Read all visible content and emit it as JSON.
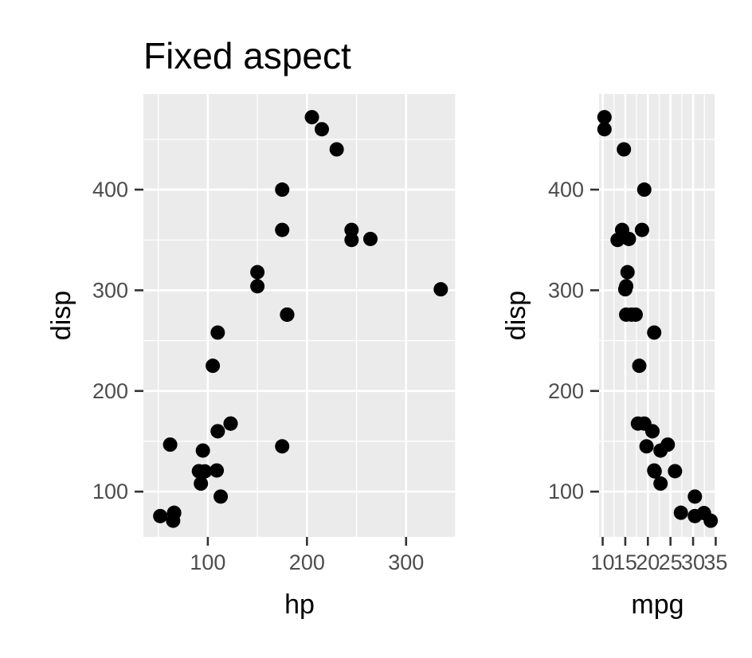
{
  "chart_data": [
    {
      "type": "scatter",
      "title": "Fixed aspect",
      "xlabel": "hp",
      "ylabel": "disp",
      "xlim": [
        35,
        350
      ],
      "ylim": [
        55,
        495
      ],
      "xticks": [
        100,
        200,
        300
      ],
      "yticks": [
        100,
        200,
        300,
        400
      ],
      "grid": true,
      "background": "#ebebeb",
      "point_color": "#000000",
      "series": [
        {
          "points": [
            [
              110,
              160
            ],
            [
              110,
              160
            ],
            [
              93,
              108
            ],
            [
              110,
              258
            ],
            [
              175,
              360
            ],
            [
              105,
              225
            ],
            [
              245,
              360
            ],
            [
              62,
              146.7
            ],
            [
              95,
              140.8
            ],
            [
              123,
              167.6
            ],
            [
              123,
              167.6
            ],
            [
              180,
              275.8
            ],
            [
              180,
              275.8
            ],
            [
              180,
              275.8
            ],
            [
              205,
              472
            ],
            [
              215,
              460
            ],
            [
              230,
              440
            ],
            [
              66,
              78.7
            ],
            [
              52,
              75.7
            ],
            [
              65,
              71.1
            ],
            [
              97,
              120.1
            ],
            [
              150,
              318
            ],
            [
              150,
              304
            ],
            [
              245,
              350
            ],
            [
              175,
              400
            ],
            [
              66,
              79
            ],
            [
              91,
              120.3
            ],
            [
              113,
              95.1
            ],
            [
              264,
              351
            ],
            [
              175,
              145
            ],
            [
              335,
              301
            ],
            [
              109,
              121
            ]
          ]
        }
      ]
    },
    {
      "type": "scatter",
      "title": "",
      "xlabel": "mpg",
      "ylabel": "disp",
      "xlim": [
        9.2,
        35.1
      ],
      "ylim": [
        55,
        495
      ],
      "xticks": [
        10,
        15,
        20,
        25,
        30,
        35
      ],
      "yticks": [
        100,
        200,
        300,
        400
      ],
      "grid": true,
      "background": "#ebebeb",
      "point_color": "#000000",
      "series": [
        {
          "points": [
            [
              21,
              160
            ],
            [
              21,
              160
            ],
            [
              22.8,
              108
            ],
            [
              21.4,
              258
            ],
            [
              18.7,
              360
            ],
            [
              18.1,
              225
            ],
            [
              14.3,
              360
            ],
            [
              24.4,
              146.7
            ],
            [
              22.8,
              140.8
            ],
            [
              19.2,
              167.6
            ],
            [
              17.8,
              167.6
            ],
            [
              16.4,
              275.8
            ],
            [
              17.3,
              275.8
            ],
            [
              15.2,
              275.8
            ],
            [
              10.4,
              472
            ],
            [
              10.4,
              460
            ],
            [
              14.7,
              440
            ],
            [
              32.4,
              78.7
            ],
            [
              30.4,
              75.7
            ],
            [
              33.9,
              71.1
            ],
            [
              21.5,
              120.1
            ],
            [
              15.5,
              318
            ],
            [
              15.2,
              304
            ],
            [
              13.3,
              350
            ],
            [
              19.2,
              400
            ],
            [
              27.3,
              79
            ],
            [
              26,
              120.3
            ],
            [
              30.4,
              95.1
            ],
            [
              15.8,
              351
            ],
            [
              19.7,
              145
            ],
            [
              15,
              301
            ],
            [
              21.4,
              121
            ]
          ]
        }
      ]
    }
  ]
}
